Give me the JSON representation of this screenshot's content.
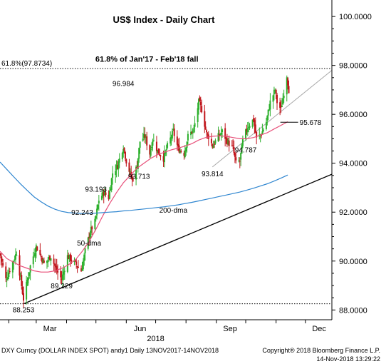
{
  "footer": {
    "left": "DXY Curncy (DOLLAR INDEX SPOT) andy1  Daily 13NOV2017-14NOV2018",
    "right_line1": "Copyright® 2018 Bloomberg Finance L.P.",
    "right_line2": "14-Nov-2018 13:29:22"
  },
  "chart_data": {
    "type": "candlestick",
    "title": "US$ Index - Daily Chart",
    "x_tick_labels": [
      "Mar",
      "Jun",
      "Sep",
      "Dec"
    ],
    "x_year_label": "2018",
    "y_tick_labels": [
      "100.0000",
      "98.0000",
      "96.0000",
      "94.0000",
      "92.0000",
      "90.0000",
      "88.0000"
    ],
    "y_ticks": [
      100,
      98,
      96,
      94,
      92,
      90,
      88
    ],
    "ylim": [
      87.6,
      100.5
    ],
    "xlim": [
      "2018-01-23",
      "2018-12-28"
    ],
    "grid": false,
    "colors": {
      "up_candle": "#2db02d",
      "down_candle": "#c0141a",
      "ma50": "#e8507a",
      "ma200": "#2f86d0",
      "trendline": "#000000",
      "channel_line": "#a8a8a8",
      "reference_line": "#000000"
    },
    "horizontal_lines": [
      {
        "label": "61.8%(97.8734)",
        "value": 97.8734,
        "style": "dotted"
      },
      {
        "value": 88.253,
        "style": "dotted"
      }
    ],
    "annotations": [
      {
        "text": "61.8% of Jan'17 - Feb'18 fall",
        "date": "2018-06-22",
        "value": 98.09
      },
      {
        "text": "96.984",
        "date": "2018-05-29",
        "value": 96.984
      },
      {
        "text": "93.713",
        "date": "2018-06-14",
        "value": 93.713
      },
      {
        "text": "93.193",
        "date": "2018-05-01",
        "value": 93.193
      },
      {
        "text": "92.243",
        "date": "2018-04-17",
        "value": 92.243
      },
      {
        "text": "93.814",
        "date": "2018-08-28",
        "value": 93.814
      },
      {
        "text": "94.787",
        "date": "2018-10-01",
        "value": 94.787
      },
      {
        "text": "95.678",
        "date": "2018-11-09",
        "value": 95.678
      },
      {
        "text": "89.229",
        "date": "2018-03-27",
        "value": 89.229
      },
      {
        "text": "88.253",
        "date": "2018-02-16",
        "value": 88.253
      },
      {
        "text": "200-dma",
        "date": "2018-07-19",
        "value": 91.98
      },
      {
        "text": "50-dma",
        "date": "2018-04-24",
        "value": 90.63
      }
    ],
    "trendline_main": [
      {
        "date": "2018-02-16",
        "value": 88.25
      },
      {
        "date": "2018-12-28",
        "value": 93.55
      }
    ],
    "trendline_channel": [
      {
        "date": "2018-08-28",
        "value": 93.85
      },
      {
        "date": "2018-12-28",
        "value": 97.8
      }
    ],
    "series": [
      {
        "name": "50-dma",
        "type": "line",
        "points": [
          [
            "2018-01-23",
            90.4
          ],
          [
            "2018-01-30",
            90.1
          ],
          [
            "2018-02-06",
            89.95
          ],
          [
            "2018-02-13",
            89.8
          ],
          [
            "2018-02-20",
            89.7
          ],
          [
            "2018-02-27",
            89.6
          ],
          [
            "2018-03-06",
            89.55
          ],
          [
            "2018-03-13",
            89.55
          ],
          [
            "2018-03-20",
            89.6
          ],
          [
            "2018-03-27",
            89.7
          ],
          [
            "2018-04-03",
            89.85
          ],
          [
            "2018-04-10",
            90.05
          ],
          [
            "2018-04-17",
            90.4
          ],
          [
            "2018-04-24",
            90.8
          ],
          [
            "2018-05-01",
            91.3
          ],
          [
            "2018-05-08",
            91.85
          ],
          [
            "2018-05-15",
            92.35
          ],
          [
            "2018-05-22",
            92.8
          ],
          [
            "2018-05-29",
            93.2
          ],
          [
            "2018-06-05",
            93.5
          ],
          [
            "2018-06-12",
            93.8
          ],
          [
            "2018-06-19",
            94.0
          ],
          [
            "2018-06-26",
            94.2
          ],
          [
            "2018-07-03",
            94.35
          ],
          [
            "2018-07-10",
            94.45
          ],
          [
            "2018-07-17",
            94.55
          ],
          [
            "2018-07-24",
            94.62
          ],
          [
            "2018-07-31",
            94.7
          ],
          [
            "2018-08-07",
            94.8
          ],
          [
            "2018-08-14",
            94.95
          ],
          [
            "2018-08-21",
            95.05
          ],
          [
            "2018-08-28",
            95.1
          ],
          [
            "2018-09-04",
            95.12
          ],
          [
            "2018-09-11",
            95.1
          ],
          [
            "2018-09-18",
            95.05
          ],
          [
            "2018-09-25",
            95.0
          ],
          [
            "2018-10-02",
            95.0
          ],
          [
            "2018-10-09",
            95.05
          ],
          [
            "2018-10-16",
            95.15
          ],
          [
            "2018-10-23",
            95.25
          ],
          [
            "2018-10-30",
            95.4
          ],
          [
            "2018-11-06",
            95.55
          ],
          [
            "2018-11-13",
            95.7
          ]
        ]
      },
      {
        "name": "200-dma",
        "type": "line",
        "points": [
          [
            "2018-01-23",
            94.05
          ],
          [
            "2018-01-30",
            93.75
          ],
          [
            "2018-02-06",
            93.45
          ],
          [
            "2018-02-13",
            93.15
          ],
          [
            "2018-02-20",
            92.88
          ],
          [
            "2018-02-27",
            92.62
          ],
          [
            "2018-03-06",
            92.42
          ],
          [
            "2018-03-13",
            92.25
          ],
          [
            "2018-03-20",
            92.12
          ],
          [
            "2018-03-27",
            92.03
          ],
          [
            "2018-04-03",
            91.98
          ],
          [
            "2018-04-10",
            91.96
          ],
          [
            "2018-04-17",
            91.95
          ],
          [
            "2018-04-24",
            91.95
          ],
          [
            "2018-05-01",
            91.96
          ],
          [
            "2018-05-08",
            91.98
          ],
          [
            "2018-05-15",
            92.0
          ],
          [
            "2018-05-22",
            92.02
          ],
          [
            "2018-05-29",
            92.05
          ],
          [
            "2018-06-05",
            92.07
          ],
          [
            "2018-06-12",
            92.1
          ],
          [
            "2018-06-19",
            92.13
          ],
          [
            "2018-06-26",
            92.16
          ],
          [
            "2018-07-03",
            92.19
          ],
          [
            "2018-07-10",
            92.22
          ],
          [
            "2018-07-17",
            92.26
          ],
          [
            "2018-07-24",
            92.3
          ],
          [
            "2018-07-31",
            92.35
          ],
          [
            "2018-08-07",
            92.4
          ],
          [
            "2018-08-14",
            92.46
          ],
          [
            "2018-08-21",
            92.52
          ],
          [
            "2018-08-28",
            92.58
          ],
          [
            "2018-09-04",
            92.64
          ],
          [
            "2018-09-11",
            92.7
          ],
          [
            "2018-09-18",
            92.76
          ],
          [
            "2018-09-25",
            92.82
          ],
          [
            "2018-10-02",
            92.9
          ],
          [
            "2018-10-09",
            92.98
          ],
          [
            "2018-10-16",
            93.07
          ],
          [
            "2018-10-23",
            93.16
          ],
          [
            "2018-10-30",
            93.27
          ],
          [
            "2018-11-06",
            93.39
          ],
          [
            "2018-11-13",
            93.52
          ]
        ]
      },
      {
        "name": "DXY",
        "type": "candlestick",
        "anchors": [
          [
            "2018-01-23",
            90.3
          ],
          [
            "2018-01-29",
            89.25
          ],
          [
            "2018-02-05",
            89.95
          ],
          [
            "2018-02-09",
            90.35
          ],
          [
            "2018-02-16",
            88.45
          ],
          [
            "2018-02-23",
            89.8
          ],
          [
            "2018-03-01",
            90.6
          ],
          [
            "2018-03-09",
            89.9
          ],
          [
            "2018-03-16",
            90.2
          ],
          [
            "2018-03-22",
            89.6
          ],
          [
            "2018-03-27",
            89.25
          ],
          [
            "2018-04-02",
            90.2
          ],
          [
            "2018-04-09",
            89.95
          ],
          [
            "2018-04-16",
            89.6
          ],
          [
            "2018-04-20",
            90.4
          ],
          [
            "2018-04-25",
            91.2
          ],
          [
            "2018-04-30",
            91.6
          ],
          [
            "2018-05-04",
            92.5
          ],
          [
            "2018-05-09",
            92.8
          ],
          [
            "2018-05-14",
            92.6
          ],
          [
            "2018-05-18",
            93.6
          ],
          [
            "2018-05-23",
            93.9
          ],
          [
            "2018-05-29",
            94.7
          ],
          [
            "2018-06-01",
            94.1
          ],
          [
            "2018-06-07",
            93.3
          ],
          [
            "2018-06-12",
            93.9
          ],
          [
            "2018-06-15",
            94.9
          ],
          [
            "2018-06-20",
            95.1
          ],
          [
            "2018-06-25",
            94.4
          ],
          [
            "2018-06-28",
            95.0
          ],
          [
            "2018-07-03",
            94.5
          ],
          [
            "2018-07-09",
            94.2
          ],
          [
            "2018-07-13",
            94.7
          ],
          [
            "2018-07-19",
            95.3
          ],
          [
            "2018-07-24",
            94.6
          ],
          [
            "2018-07-30",
            94.4
          ],
          [
            "2018-08-03",
            95.1
          ],
          [
            "2018-08-09",
            95.4
          ],
          [
            "2018-08-14",
            96.5
          ],
          [
            "2018-08-17",
            96.2
          ],
          [
            "2018-08-22",
            95.2
          ],
          [
            "2018-08-24",
            95.1
          ],
          [
            "2018-08-28",
            94.7
          ],
          [
            "2018-09-03",
            95.1
          ],
          [
            "2018-09-07",
            95.3
          ],
          [
            "2018-09-12",
            94.9
          ],
          [
            "2018-09-18",
            94.6
          ],
          [
            "2018-09-21",
            94.0
          ],
          [
            "2018-09-25",
            94.1
          ],
          [
            "2018-09-28",
            94.9
          ],
          [
            "2018-10-03",
            95.5
          ],
          [
            "2018-10-09",
            95.8
          ],
          [
            "2018-10-12",
            95.0
          ],
          [
            "2018-10-17",
            95.2
          ],
          [
            "2018-10-22",
            95.7
          ],
          [
            "2018-10-26",
            96.5
          ],
          [
            "2018-10-31",
            97.0
          ],
          [
            "2018-11-02",
            96.5
          ],
          [
            "2018-11-06",
            96.2
          ],
          [
            "2018-11-09",
            96.9
          ],
          [
            "2018-11-12",
            97.6
          ],
          [
            "2018-11-14",
            97.0
          ]
        ]
      }
    ]
  }
}
